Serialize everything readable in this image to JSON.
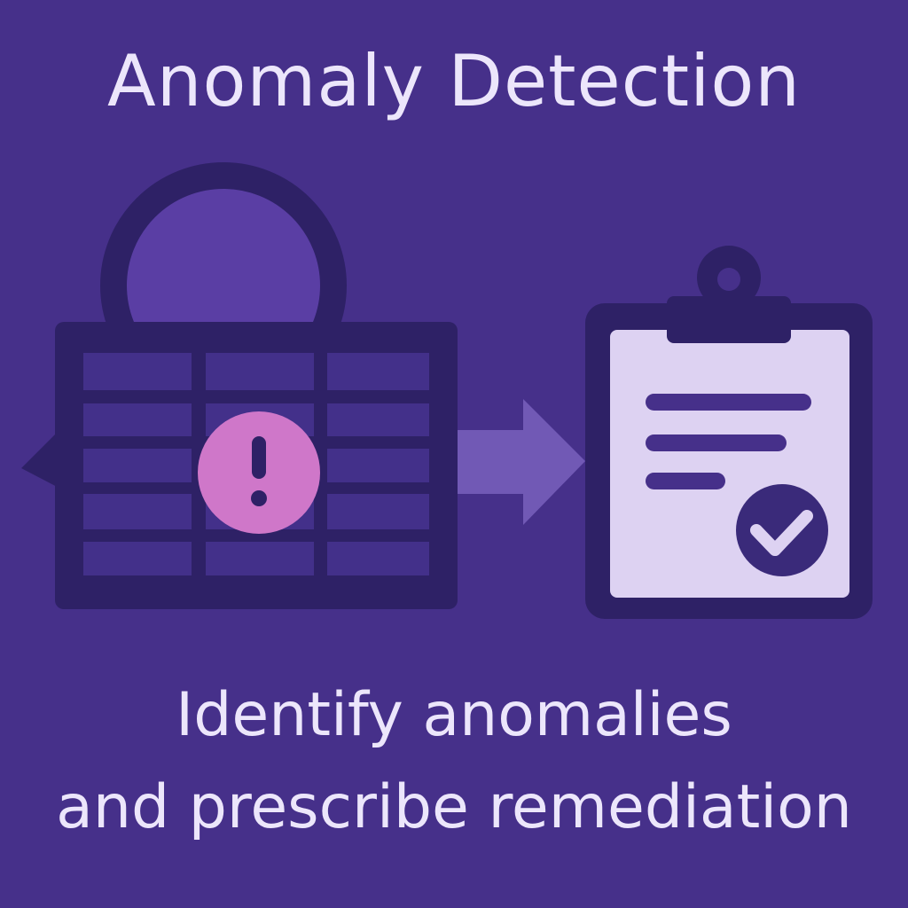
{
  "title": "Anomaly Detection",
  "subtitle": {
    "line1": "Identify anomalies",
    "line2": "and prescribe remediation"
  },
  "icons": {
    "data_table": "data-table-icon",
    "magnifier": "magnifying-glass-icon",
    "alert": "exclamation-alert-icon",
    "arrow": "arrow-right-icon",
    "clipboard": "clipboard-report-icon",
    "check": "checkmark-icon"
  },
  "colors": {
    "background": "#46308a",
    "dark_shape": "#2e2166",
    "cell": "#43308a",
    "alert_badge": "#cf77c9",
    "arrow": "#7159b5",
    "paper": "#ddd2f2",
    "text": "#ece6fb"
  }
}
